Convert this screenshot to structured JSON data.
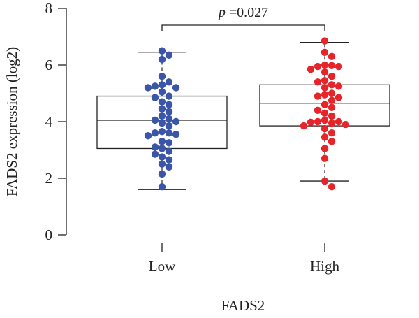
{
  "chart_data": {
    "type": "box",
    "title": "",
    "xlabel": "FADS2",
    "ylabel": "FADS2 expression (log2)",
    "ylim": [
      0,
      8
    ],
    "yticks": [
      "0",
      "2",
      "4",
      "6",
      "8"
    ],
    "categories": [
      "Low",
      "High"
    ],
    "annotation": {
      "p_symbol": "p",
      "p_text": "=0.027"
    },
    "series": [
      {
        "category": "Low",
        "color": "#3B55A8",
        "box": {
          "whisker_low": 1.6,
          "q1": 3.05,
          "median": 4.05,
          "q3": 4.9,
          "whisker_high": 6.45
        },
        "points": [
          6.5,
          6.35,
          6.2,
          5.6,
          5.4,
          5.3,
          5.25,
          5.2,
          5.2,
          5.05,
          4.9,
          4.85,
          4.7,
          4.6,
          4.45,
          4.35,
          4.2,
          4.1,
          4.05,
          4.0,
          3.95,
          3.85,
          3.65,
          3.6,
          3.6,
          3.55,
          3.5,
          3.3,
          3.25,
          3.1,
          3.05,
          2.95,
          2.85,
          2.75,
          2.65,
          2.5,
          2.4,
          2.15,
          1.7
        ]
      },
      {
        "category": "High",
        "color": "#E8242B",
        "box": {
          "whisker_low": 1.9,
          "q1": 3.85,
          "median": 4.65,
          "q3": 5.3,
          "whisker_high": 6.8
        },
        "points": [
          6.85,
          6.45,
          6.3,
          6.0,
          5.98,
          5.95,
          5.95,
          5.85,
          5.75,
          5.6,
          5.45,
          5.4,
          5.3,
          5.25,
          5.2,
          5.0,
          4.95,
          4.9,
          4.85,
          4.75,
          4.6,
          4.5,
          4.4,
          4.3,
          4.2,
          4.05,
          4.0,
          4.0,
          3.98,
          3.95,
          3.9,
          3.85,
          3.75,
          3.6,
          3.45,
          3.3,
          3.05,
          2.7,
          1.9,
          1.7
        ]
      }
    ],
    "grid": false
  }
}
